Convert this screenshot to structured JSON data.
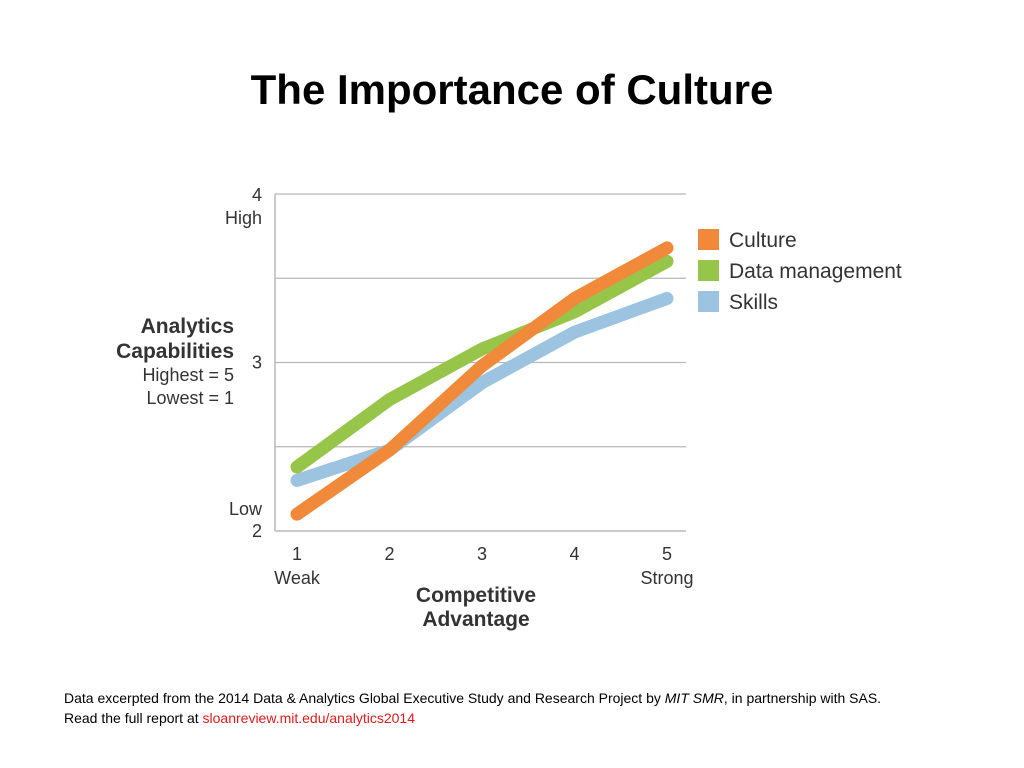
{
  "slide": {
    "title": "The Importance of Culture"
  },
  "chart_data": {
    "type": "line",
    "x": [
      1,
      2,
      3,
      4,
      5
    ],
    "x_tick_labels": [
      {
        "num": "1",
        "word": "Weak"
      },
      {
        "num": "2",
        "word": ""
      },
      {
        "num": "3",
        "word": ""
      },
      {
        "num": "4",
        "word": ""
      },
      {
        "num": "5",
        "word": "Strong"
      }
    ],
    "y_ticks": [
      {
        "value": 4,
        "num": "4",
        "word": "High"
      },
      {
        "value": 3,
        "num": "3",
        "word": ""
      },
      {
        "value": 2,
        "num": "2",
        "word": "Low"
      }
    ],
    "xlabel": [
      "Competitive",
      "Advantage"
    ],
    "ylabel": [
      "Analytics",
      "Capabilities"
    ],
    "ylabel_notes": [
      "Highest = 5",
      "Lowest = 1"
    ],
    "xlim": [
      1,
      5
    ],
    "ylim": [
      2,
      4
    ],
    "grid": true,
    "legend_position": "right",
    "series": [
      {
        "name": "Skills",
        "color": "#9cc3df",
        "values": [
          2.3,
          2.48,
          2.88,
          3.18,
          3.38
        ]
      },
      {
        "name": "Data management",
        "color": "#97c54a",
        "values": [
          2.38,
          2.78,
          3.08,
          3.3,
          3.6
        ]
      },
      {
        "name": "Culture",
        "color": "#f08a3a",
        "values": [
          2.1,
          2.48,
          2.98,
          3.38,
          3.68
        ]
      }
    ],
    "legend_order": [
      "Culture",
      "Data management",
      "Skills"
    ]
  },
  "footnote": {
    "line1_pre": "Data excerpted from the 2014 Data & Analytics Global Executive Study and Research Project by ",
    "line1_italic": "MIT SMR",
    "line1_post": ", in partnership with SAS.",
    "line2_pre": "Read the full report at ",
    "line2_link": "sloanreview.mit.edu/analytics2014"
  }
}
